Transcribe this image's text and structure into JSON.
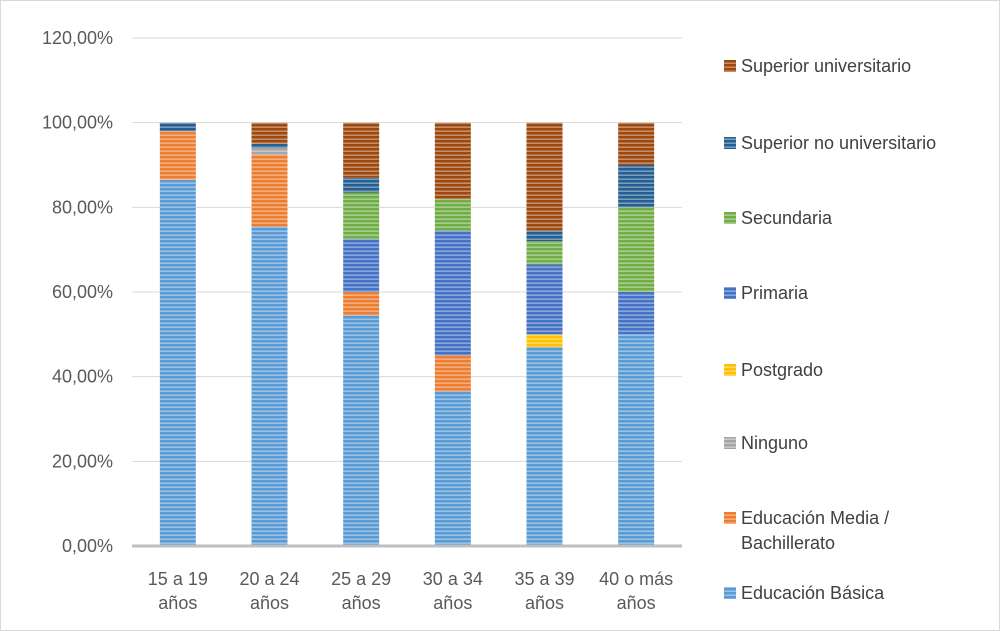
{
  "chart_data": {
    "type": "bar",
    "stacked": true,
    "categories": [
      [
        "15 a 19",
        "años"
      ],
      [
        "20 a 24",
        "años"
      ],
      [
        "25 a 29",
        "años"
      ],
      [
        "30 a 34",
        "años"
      ],
      [
        "35 a 39",
        "años"
      ],
      [
        "40 o más",
        "años"
      ]
    ],
    "ylim": [
      0,
      120
    ],
    "yticks": [
      "0,00%",
      "20,00%",
      "40,00%",
      "60,00%",
      "80,00%",
      "100,00%",
      "120,00%"
    ],
    "grid": true,
    "legend_position": "right",
    "series": [
      {
        "name": "Educación Básica",
        "color": "#5B9BD5",
        "values": [
          86.5,
          75.5,
          54.5,
          36.5,
          47.0,
          50.0
        ]
      },
      {
        "name": [
          "Educación Media /",
          "Bachillerato"
        ],
        "color": "#ED7D31",
        "values": [
          11.5,
          17.0,
          5.5,
          8.5,
          0,
          0
        ]
      },
      {
        "name": "Ninguno",
        "color": "#A5A5A5",
        "values": [
          0,
          1.5,
          0,
          0,
          0,
          0
        ]
      },
      {
        "name": "Postgrado",
        "color": "#FFC000",
        "values": [
          0,
          0,
          0,
          0,
          3.0,
          0
        ]
      },
      {
        "name": "Primaria",
        "color": "#4472C4",
        "values": [
          0,
          0,
          12.5,
          29.5,
          16.5,
          10.0
        ]
      },
      {
        "name": "Secundaria",
        "color": "#70AD47",
        "values": [
          0,
          0,
          11.0,
          7.5,
          5.5,
          20.0
        ]
      },
      {
        "name": "Superior no universitario",
        "color": "#255E91",
        "values": [
          2.0,
          1.0,
          3.5,
          0,
          2.5,
          10.0
        ]
      },
      {
        "name": "Superior universitario",
        "color": "#9E480E",
        "values": [
          0,
          5.0,
          13.0,
          18.0,
          25.5,
          10.0
        ]
      }
    ]
  }
}
